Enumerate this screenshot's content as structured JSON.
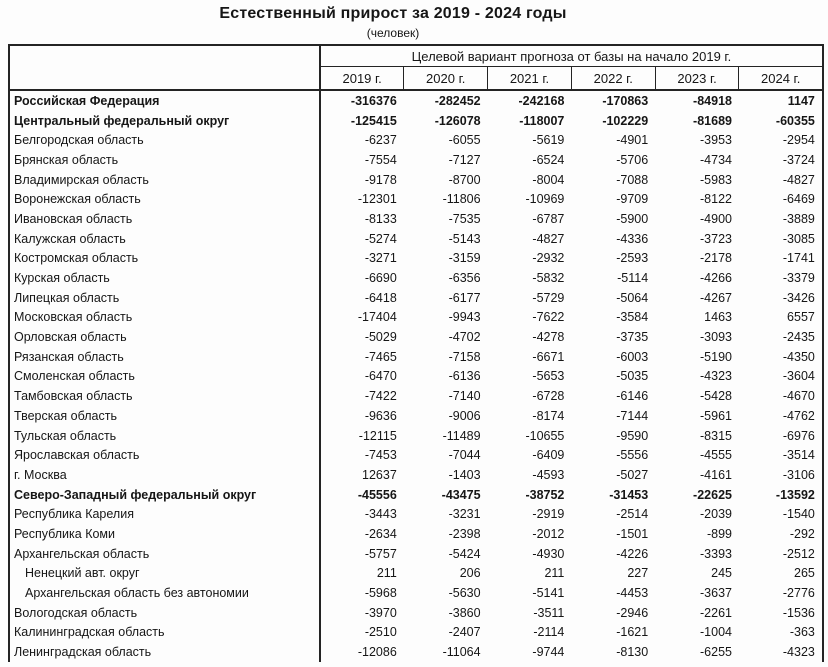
{
  "title": "Естественный прирост за 2019 - 2024 годы",
  "subtitle": "(человек)",
  "table": {
    "group_header": "Целевой вариант прогноза от базы на начало 2019 г.",
    "year_headers": [
      "2019 г.",
      "2020 г.",
      "2021 г.",
      "2022 г.",
      "2023 г.",
      "2024 г."
    ],
    "rows": [
      {
        "name": "Российская Федерация",
        "bold": true,
        "indent": false,
        "values": [
          "-316376",
          "-282452",
          "-242168",
          "-170863",
          "-84918",
          "1147"
        ]
      },
      {
        "name": "Центральный федеральный округ",
        "bold": true,
        "indent": false,
        "values": [
          "-125415",
          "-126078",
          "-118007",
          "-102229",
          "-81689",
          "-60355"
        ]
      },
      {
        "name": "Белгородская область",
        "bold": false,
        "indent": false,
        "values": [
          "-6237",
          "-6055",
          "-5619",
          "-4901",
          "-3953",
          "-2954"
        ]
      },
      {
        "name": "Брянская область",
        "bold": false,
        "indent": false,
        "values": [
          "-7554",
          "-7127",
          "-6524",
          "-5706",
          "-4734",
          "-3724"
        ]
      },
      {
        "name": "Владимирская область",
        "bold": false,
        "indent": false,
        "values": [
          "-9178",
          "-8700",
          "-8004",
          "-7088",
          "-5983",
          "-4827"
        ]
      },
      {
        "name": "Воронежская область",
        "bold": false,
        "indent": false,
        "values": [
          "-12301",
          "-11806",
          "-10969",
          "-9709",
          "-8122",
          "-6469"
        ]
      },
      {
        "name": "Ивановская область",
        "bold": false,
        "indent": false,
        "values": [
          "-8133",
          "-7535",
          "-6787",
          "-5900",
          "-4900",
          "-3889"
        ]
      },
      {
        "name": "Калужская область",
        "bold": false,
        "indent": false,
        "values": [
          "-5274",
          "-5143",
          "-4827",
          "-4336",
          "-3723",
          "-3085"
        ]
      },
      {
        "name": "Костромская область",
        "bold": false,
        "indent": false,
        "values": [
          "-3271",
          "-3159",
          "-2932",
          "-2593",
          "-2178",
          "-1741"
        ]
      },
      {
        "name": "Курская область",
        "bold": false,
        "indent": false,
        "values": [
          "-6690",
          "-6356",
          "-5832",
          "-5114",
          "-4266",
          "-3379"
        ]
      },
      {
        "name": "Липецкая область",
        "bold": false,
        "indent": false,
        "values": [
          "-6418",
          "-6177",
          "-5729",
          "-5064",
          "-4267",
          "-3426"
        ]
      },
      {
        "name": "Московская область",
        "bold": false,
        "indent": false,
        "values": [
          "-17404",
          "-9943",
          "-7622",
          "-3584",
          "1463",
          "6557"
        ]
      },
      {
        "name": "Орловская область",
        "bold": false,
        "indent": false,
        "values": [
          "-5029",
          "-4702",
          "-4278",
          "-3735",
          "-3093",
          "-2435"
        ]
      },
      {
        "name": "Рязанская область",
        "bold": false,
        "indent": false,
        "values": [
          "-7465",
          "-7158",
          "-6671",
          "-6003",
          "-5190",
          "-4350"
        ]
      },
      {
        "name": "Смоленская область",
        "bold": false,
        "indent": false,
        "values": [
          "-6470",
          "-6136",
          "-5653",
          "-5035",
          "-4323",
          "-3604"
        ]
      },
      {
        "name": "Тамбовская область",
        "bold": false,
        "indent": false,
        "values": [
          "-7422",
          "-7140",
          "-6728",
          "-6146",
          "-5428",
          "-4670"
        ]
      },
      {
        "name": "Тверская область",
        "bold": false,
        "indent": false,
        "values": [
          "-9636",
          "-9006",
          "-8174",
          "-7144",
          "-5961",
          "-4762"
        ]
      },
      {
        "name": "Тульская область",
        "bold": false,
        "indent": false,
        "values": [
          "-12115",
          "-11489",
          "-10655",
          "-9590",
          "-8315",
          "-6976"
        ]
      },
      {
        "name": "Ярославская область",
        "bold": false,
        "indent": false,
        "values": [
          "-7453",
          "-7044",
          "-6409",
          "-5556",
          "-4555",
          "-3514"
        ]
      },
      {
        "name": "г. Москва",
        "bold": false,
        "indent": false,
        "values": [
          "12637",
          "-1403",
          "-4593",
          "-5027",
          "-4161",
          "-3106"
        ]
      },
      {
        "name": "Северо-Западный федеральный округ",
        "bold": true,
        "indent": false,
        "values": [
          "-45556",
          "-43475",
          "-38752",
          "-31453",
          "-22625",
          "-13592"
        ]
      },
      {
        "name": "Республика Карелия",
        "bold": false,
        "indent": false,
        "values": [
          "-3443",
          "-3231",
          "-2919",
          "-2514",
          "-2039",
          "-1540"
        ]
      },
      {
        "name": "Республика Коми",
        "bold": false,
        "indent": false,
        "values": [
          "-2634",
          "-2398",
          "-2012",
          "-1501",
          "-899",
          "-292"
        ]
      },
      {
        "name": "Архангельская область",
        "bold": false,
        "indent": false,
        "values": [
          "-5757",
          "-5424",
          "-4930",
          "-4226",
          "-3393",
          "-2512"
        ]
      },
      {
        "name": "Ненецкий авт. округ",
        "bold": false,
        "indent": true,
        "values": [
          "211",
          "206",
          "211",
          "227",
          "245",
          "265"
        ]
      },
      {
        "name": "Архангельская область без автономии",
        "bold": false,
        "indent": true,
        "values": [
          "-5968",
          "-5630",
          "-5141",
          "-4453",
          "-3637",
          "-2776"
        ]
      },
      {
        "name": "Вологодская область",
        "bold": false,
        "indent": false,
        "values": [
          "-3970",
          "-3860",
          "-3511",
          "-2946",
          "-2261",
          "-1536"
        ]
      },
      {
        "name": "Калининградская область",
        "bold": false,
        "indent": false,
        "values": [
          "-2510",
          "-2407",
          "-2114",
          "-1621",
          "-1004",
          "-363"
        ]
      },
      {
        "name": "Ленинградская область",
        "bold": false,
        "indent": false,
        "values": [
          "-12086",
          "-11064",
          "-9744",
          "-8130",
          "-6255",
          "-4323"
        ]
      }
    ]
  }
}
